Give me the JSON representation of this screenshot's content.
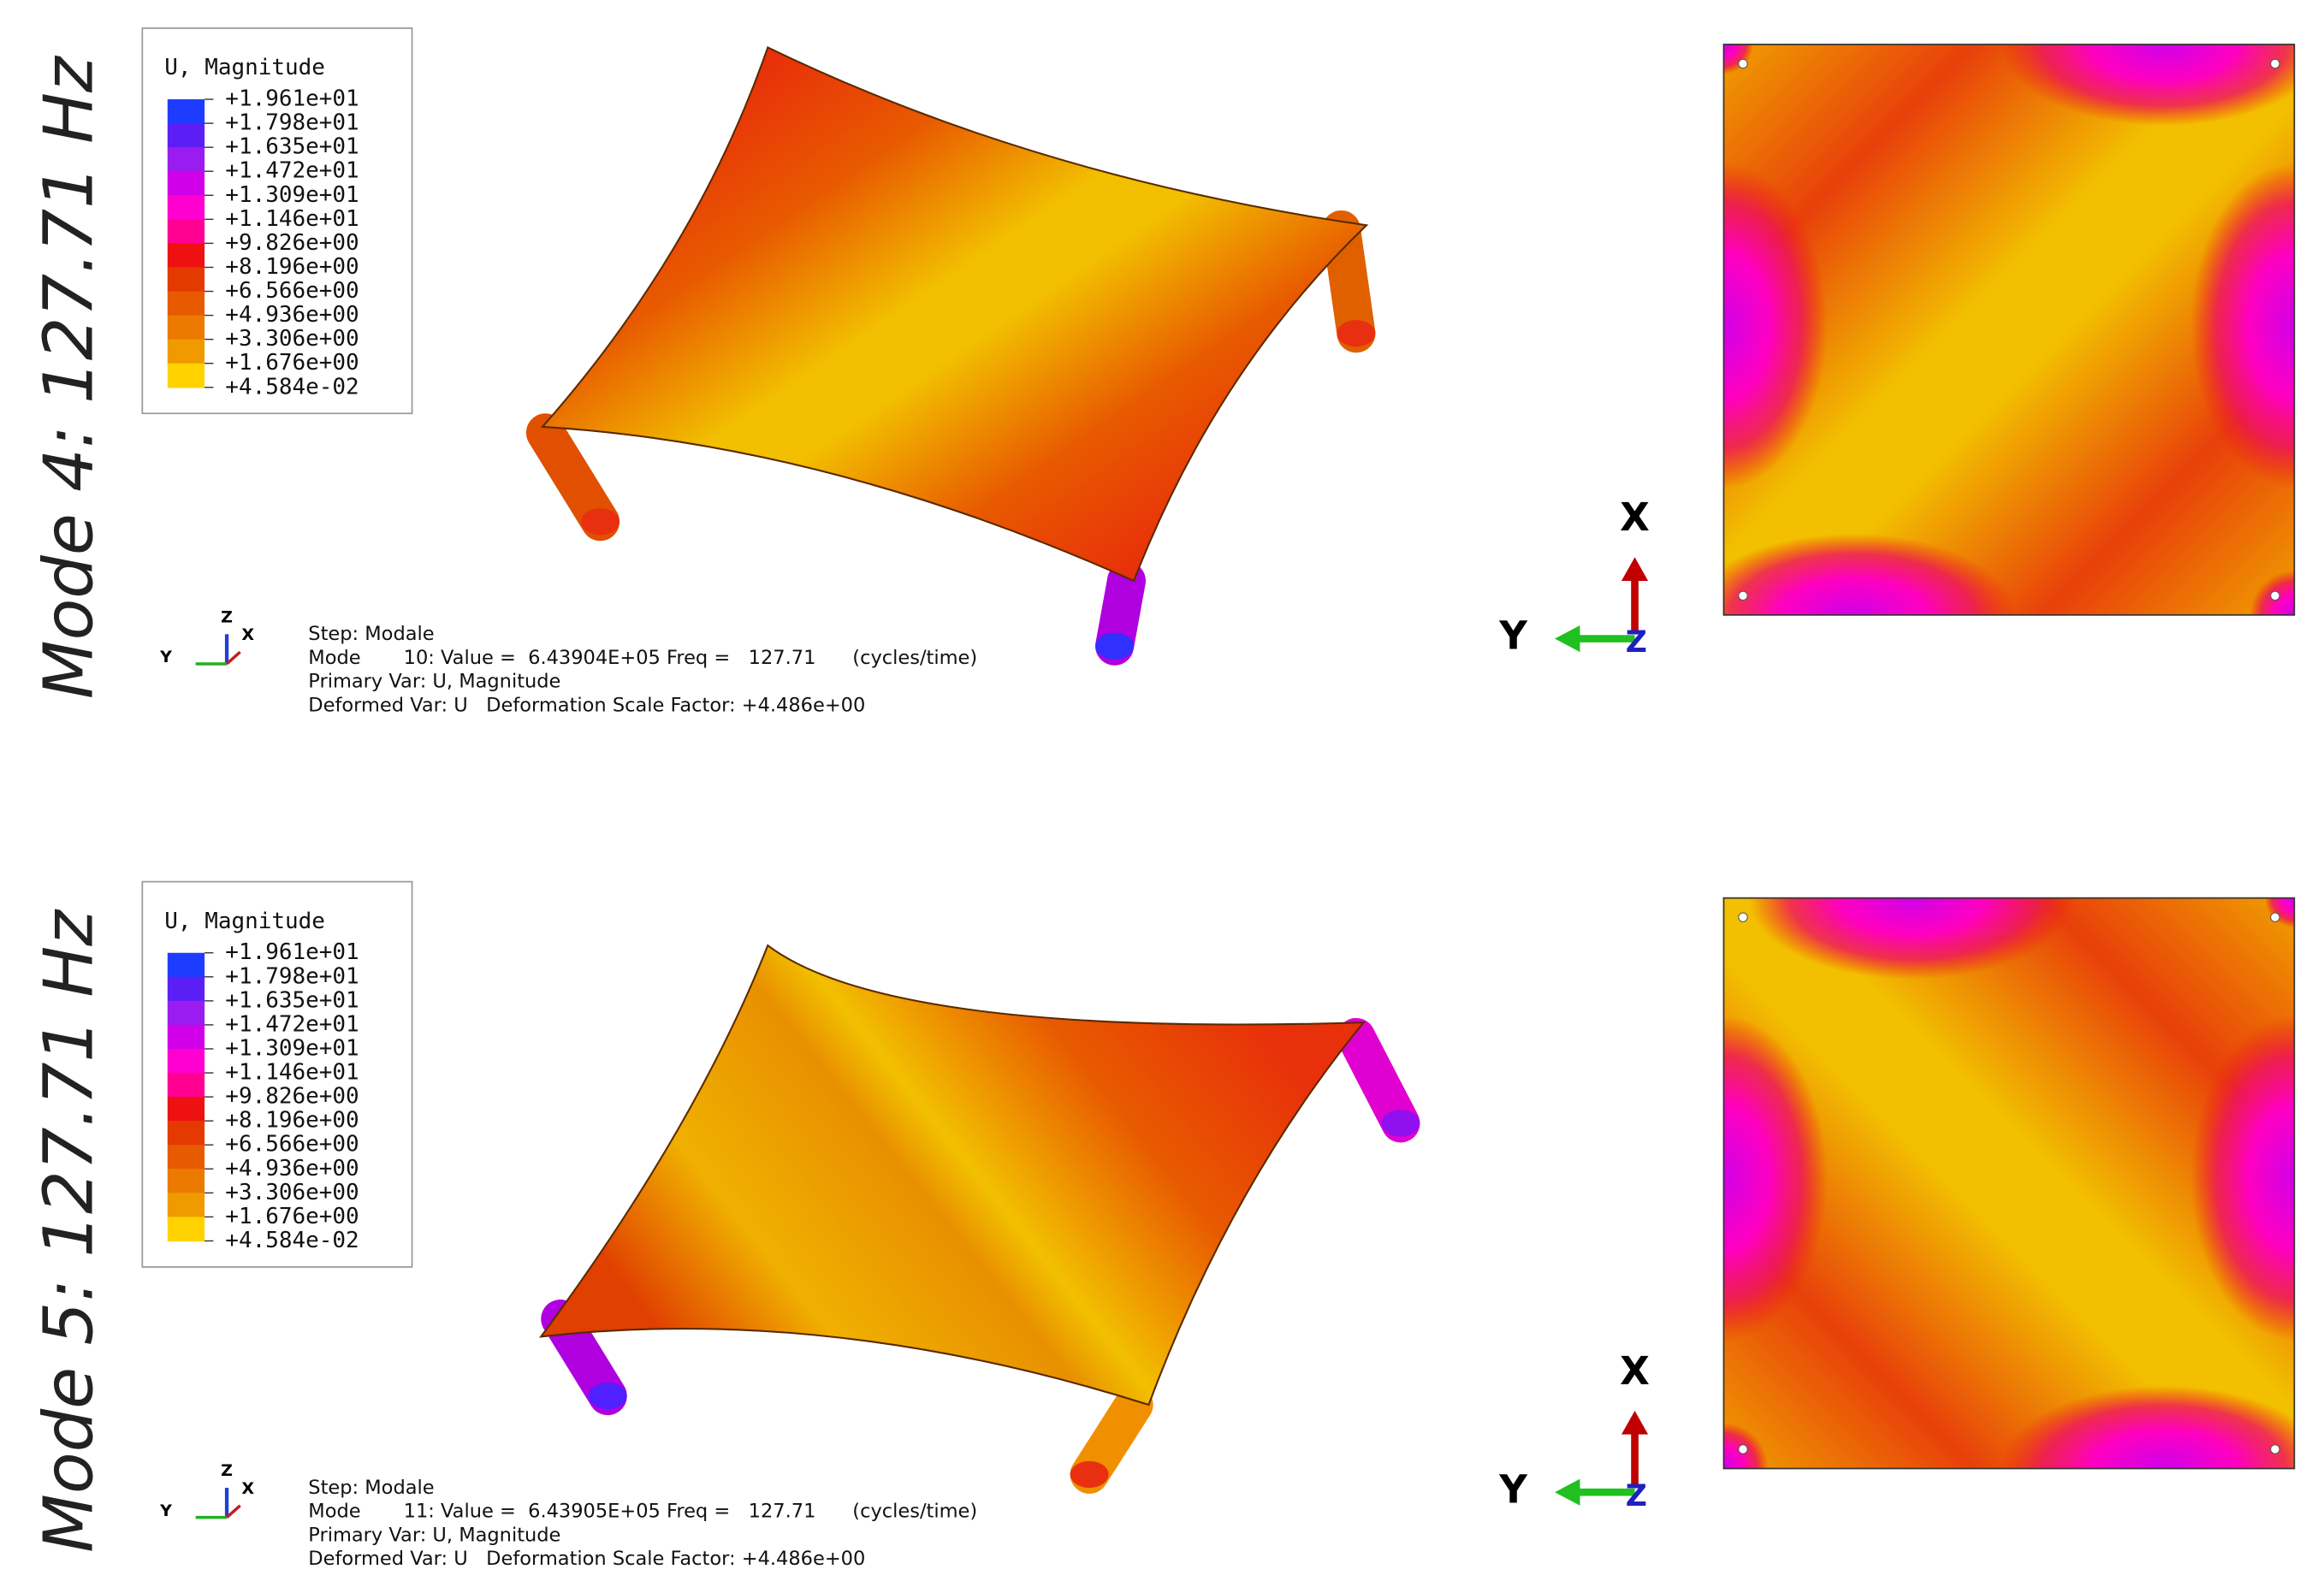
{
  "legend_colors": [
    "#1e3cff",
    "#5b1ff5",
    "#9b1cf0",
    "#d000e8",
    "#ff00d0",
    "#ff0090",
    "#ee1111",
    "#e43a00",
    "#e85a00",
    "#ec7a00",
    "#f09a00",
    "#ffd200"
  ],
  "panels": [
    {
      "mode_title": "Mode 4: 127.71 Hz",
      "legend": {
        "title": "U, Magnitude",
        "labels": [
          "+1.961e+01",
          "+1.798e+01",
          "+1.635e+01",
          "+1.472e+01",
          "+1.309e+01",
          "+1.146e+01",
          "+9.826e+00",
          "+8.196e+00",
          "+6.566e+00",
          "+4.936e+00",
          "+3.306e+00",
          "+1.676e+00",
          "+4.584e-02"
        ]
      },
      "info": [
        "Step: Modale",
        "Mode       10: Value =  6.43904E+05 Freq =   127.71      (cycles/time)",
        "Primary Var: U, Magnitude",
        "Deformed Var: U   Deformation Scale Factor: +4.486e+00"
      ],
      "triad": {
        "z": "Z",
        "x": "X",
        "y": "Y"
      },
      "top_view": {
        "x": "X",
        "y": "Y",
        "z": "Z"
      }
    },
    {
      "mode_title": "Mode 5: 127.71 Hz",
      "legend": {
        "title": "U, Magnitude",
        "labels": [
          "+1.961e+01",
          "+1.798e+01",
          "+1.635e+01",
          "+1.472e+01",
          "+1.309e+01",
          "+1.146e+01",
          "+9.826e+00",
          "+8.196e+00",
          "+6.566e+00",
          "+4.936e+00",
          "+3.306e+00",
          "+1.676e+00",
          "+4.584e-02"
        ]
      },
      "info": [
        "Step: Modale",
        "Mode       11: Value =  6.43905E+05 Freq =   127.71      (cycles/time)",
        "Primary Var: U, Magnitude",
        "Deformed Var: U   Deformation Scale Factor: +4.486e+00"
      ],
      "triad": {
        "z": "Z",
        "x": "X",
        "y": "Y"
      },
      "top_view": {
        "x": "X",
        "y": "Y",
        "z": "Z"
      }
    }
  ]
}
